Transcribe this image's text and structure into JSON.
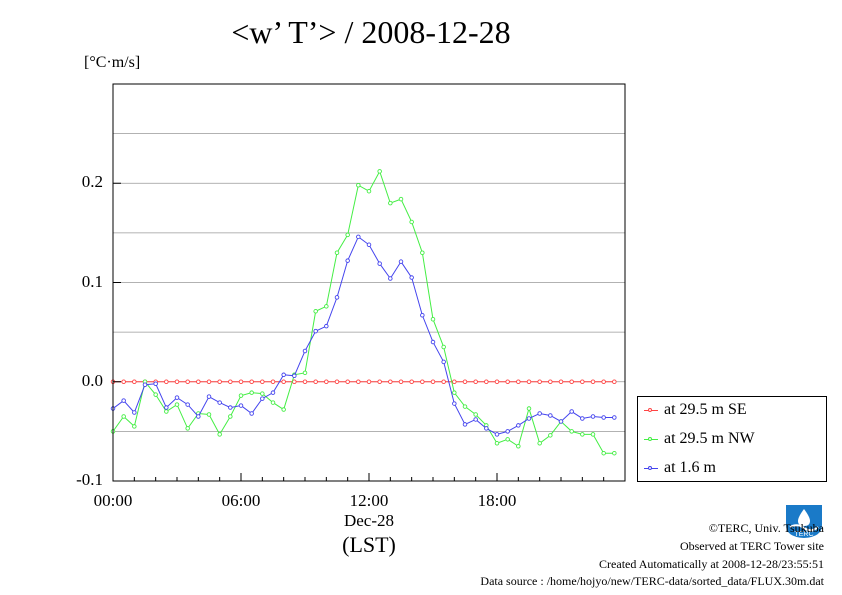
{
  "chart_data": {
    "type": "line",
    "title": "<w’ T’> / 2008-12-28",
    "ylabel": "[°C·m/s]",
    "ylim": [
      -0.1,
      0.3
    ],
    "yticks": [
      -0.1,
      0.0,
      0.1,
      0.2
    ],
    "ytick_labels": [
      "-0.1",
      "0.0",
      "0.1",
      "0.2"
    ],
    "xlim": [
      0,
      24
    ],
    "xticks": [
      0,
      6,
      12,
      18
    ],
    "xtick_labels": [
      "00:00",
      "06:00",
      "12:00",
      "18:00"
    ],
    "x_sublabel": "Dec-28",
    "x_unit": "(LST)",
    "grid": "horizontal",
    "legend_placement": "bottom-right, outside",
    "x": [
      0.0,
      0.5,
      1.0,
      1.5,
      2.0,
      2.5,
      3.0,
      3.5,
      4.0,
      4.5,
      5.0,
      5.5,
      6.0,
      6.5,
      7.0,
      7.5,
      8.0,
      8.5,
      9.0,
      9.5,
      10.0,
      10.5,
      11.0,
      11.5,
      12.0,
      12.5,
      13.0,
      13.5,
      14.0,
      14.5,
      15.0,
      15.5,
      16.0,
      16.5,
      17.0,
      17.5,
      18.0,
      18.5,
      19.0,
      19.5,
      20.0,
      20.5,
      21.0,
      21.5,
      22.0,
      22.5,
      23.0,
      23.5
    ],
    "series": [
      {
        "name": "at 29.5 m SE",
        "color": "#ff4444",
        "values": [
          0.0,
          0.0,
          0.0,
          0.0,
          0.0,
          0.0,
          0.0,
          0.0,
          0.0,
          0.0,
          0.0,
          0.0,
          0.0,
          0.0,
          0.0,
          0.0,
          0.0,
          0.0,
          0.0,
          0.0,
          0.0,
          0.0,
          0.0,
          0.0,
          0.0,
          0.0,
          0.0,
          0.0,
          0.0,
          0.0,
          0.0,
          0.0,
          0.0,
          0.0,
          0.0,
          0.0,
          0.0,
          0.0,
          0.0,
          0.0,
          0.0,
          0.0,
          0.0,
          0.0,
          0.0,
          0.0,
          0.0,
          0.0
        ]
      },
      {
        "name": "at 29.5 m NW",
        "color": "#44ee44",
        "values": [
          -0.05,
          -0.035,
          -0.045,
          0.0,
          -0.013,
          -0.03,
          -0.023,
          -0.047,
          -0.032,
          -0.033,
          -0.053,
          -0.035,
          -0.014,
          -0.011,
          -0.012,
          -0.021,
          -0.028,
          0.007,
          0.009,
          0.071,
          0.076,
          0.13,
          0.148,
          0.198,
          0.192,
          0.212,
          0.18,
          0.184,
          0.161,
          0.13,
          0.063,
          0.035,
          -0.011,
          -0.025,
          -0.033,
          -0.044,
          -0.062,
          -0.058,
          -0.065,
          -0.027,
          -0.062,
          -0.054,
          -0.04,
          -0.05,
          -0.053,
          -0.053,
          -0.072,
          -0.072
        ]
      },
      {
        "name": "at 1.6 m",
        "color": "#4444ee",
        "values": [
          -0.027,
          -0.019,
          -0.031,
          -0.003,
          -0.002,
          -0.026,
          -0.016,
          -0.023,
          -0.035,
          -0.015,
          -0.021,
          -0.026,
          -0.024,
          -0.032,
          -0.017,
          -0.011,
          0.007,
          0.006,
          0.031,
          0.051,
          0.056,
          0.085,
          0.122,
          0.146,
          0.138,
          0.119,
          0.104,
          0.121,
          0.105,
          0.067,
          0.04,
          0.02,
          -0.022,
          -0.043,
          -0.038,
          -0.047,
          -0.053,
          -0.05,
          -0.044,
          -0.037,
          -0.032,
          -0.034,
          -0.04,
          -0.03,
          -0.037,
          -0.035,
          -0.036,
          -0.036
        ]
      }
    ]
  },
  "footer": {
    "copyright": "©TERC, Univ. Tsukuba",
    "observed": "Observed at TERC Tower site",
    "created": "Created Automatically at 2008-12-28/23:55:51",
    "source": "Data source : /home/hojyo/new/TERC-data/sorted_data/FLUX.30m.dat"
  },
  "logo": {
    "text": "TERC",
    "color": "#1a7ac8"
  }
}
